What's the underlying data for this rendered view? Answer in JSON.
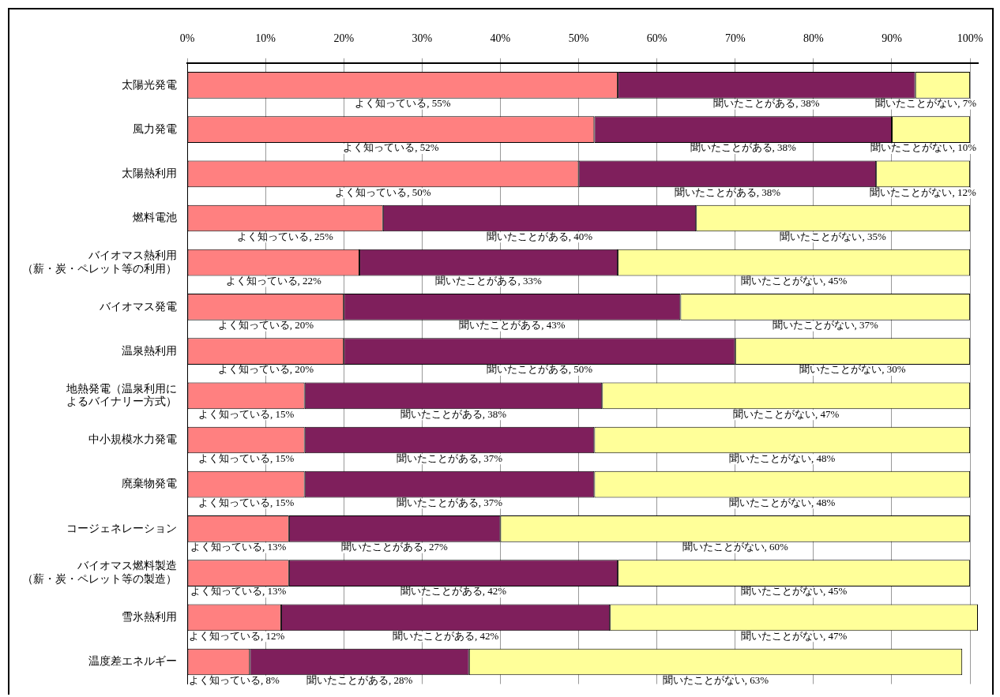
{
  "chart_data": {
    "type": "bar",
    "orientation": "horizontal",
    "stacked": true,
    "categories": [
      "太陽光発電",
      "風力発電",
      "太陽熱利用",
      "燃料電池",
      "バイオマス熱利用（薪・炭・ペレット等の利用）",
      "バイオマス発電",
      "温泉熱利用",
      "地熱発電（温泉利用によるバイナリー方式）",
      "中小規模水力発電",
      "廃棄物発電",
      "コージェネレーション",
      "バイオマス燃料製造（薪・炭・ペレット等の製造）",
      "雪氷熱利用",
      "温度差エネルギー"
    ],
    "series": [
      {
        "color": "#ff8080",
        "values": [
          55,
          52,
          50,
          25,
          22,
          20,
          20,
          15,
          15,
          15,
          13,
          13,
          12,
          8
        ],
        "value_labels": [
          "よく知っている, 55%",
          "よく知っている, 52%",
          "よく知っている, 50%",
          "よく知っている, 25%",
          "よく知っている, 22%",
          "よく知っている, 20%",
          "よく知っている, 20%",
          "よく知っている, 15%",
          "よく知っている, 15%",
          "よく知っている, 15%",
          "よく知っている, 13%",
          "よく知っている, 13%",
          "よく知っている, 12%",
          "よく知っている, 8%"
        ]
      },
      {
        "color": "#7f1f5c",
        "values": [
          38,
          38,
          38,
          40,
          33,
          43,
          50,
          38,
          37,
          37,
          27,
          42,
          42,
          28
        ],
        "value_labels": [
          "聞いたことがある, 38%",
          "聞いたことがある, 38%",
          "聞いたことがある, 38%",
          "聞いたことがある, 40%",
          "聞いたことがある, 33%",
          "聞いたことがある, 43%",
          "聞いたことがある, 50%",
          "聞いたことがある, 38%",
          "聞いたことがある, 37%",
          "聞いたことがある, 37%",
          "聞いたことがある, 27%",
          "聞いたことがある, 42%",
          "聞いたことがある, 42%",
          "聞いたことがある, 28%"
        ]
      },
      {
        "color": "#ffff99",
        "values": [
          7,
          10,
          12,
          35,
          45,
          37,
          30,
          47,
          48,
          48,
          60,
          45,
          47,
          63
        ],
        "value_labels": [
          "聞いたことがない, 7%",
          "聞いたことがない, 10%",
          "聞いたことがない, 12%",
          "聞いたことがない, 35%",
          "聞いたことがない, 45%",
          "聞いたことがない, 37%",
          "聞いたことがない, 30%",
          "聞いたことがない, 47%",
          "聞いたことがない, 48%",
          "聞いたことがない, 48%",
          "聞いたことがない, 60%",
          "聞いたことがない, 45%",
          "聞いたことがない, 47%",
          "聞いたことがない, 63%"
        ]
      }
    ],
    "xlim": [
      0,
      101
    ],
    "xticks": [
      {
        "value": 0,
        "label": "0%"
      },
      {
        "value": 10,
        "label": "10%"
      },
      {
        "value": 20,
        "label": "20%"
      },
      {
        "value": 30,
        "label": "30%"
      },
      {
        "value": 40,
        "label": "40%"
      },
      {
        "value": 50,
        "label": "50%"
      },
      {
        "value": 60,
        "label": "60%"
      },
      {
        "value": 70,
        "label": "70%"
      },
      {
        "value": 80,
        "label": "80%"
      },
      {
        "value": 90,
        "label": "90%"
      },
      {
        "value": 100,
        "label": "100%"
      }
    ],
    "grid": "x"
  }
}
